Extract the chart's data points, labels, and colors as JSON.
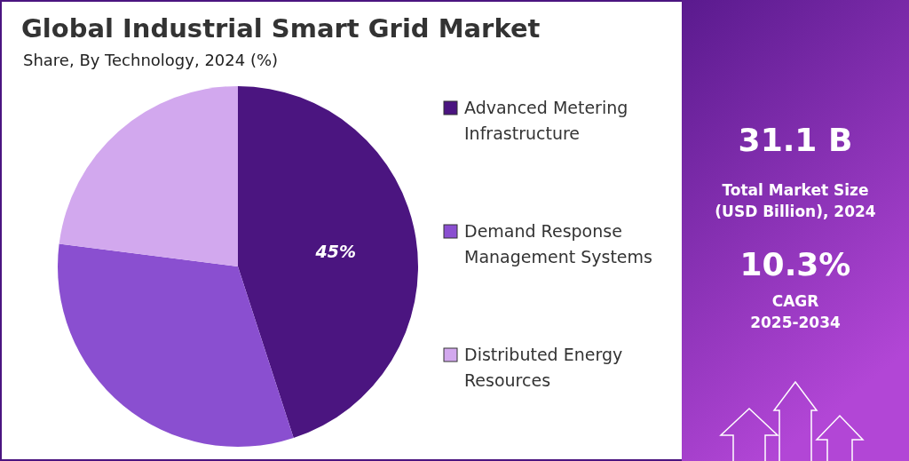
{
  "chart_data": {
    "type": "pie",
    "title": "Global Industrial Smart Grid Market",
    "subtitle": "Share, By Technology, 2024 (%)",
    "categories": [
      "Advanced Metering Infrastructure",
      "Demand Response Management Systems",
      "Distributed Energy Resources"
    ],
    "values": [
      45,
      32,
      23
    ],
    "colors": [
      "#4b1580",
      "#8a4fd0",
      "#d2a8ee"
    ],
    "value_labels": [
      "45%",
      null,
      null
    ],
    "legend": "right",
    "annotations": [
      "31.1 B",
      "Total Market Size\n(USD Billion), 2024",
      "10.3%",
      "CAGR\n2025-2034"
    ]
  }
}
